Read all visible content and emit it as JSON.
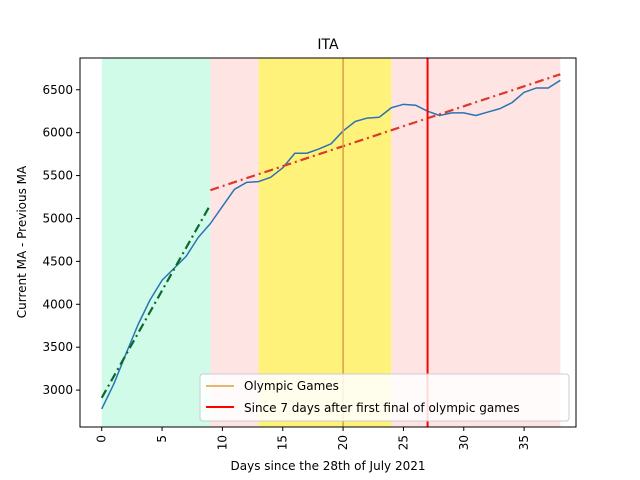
{
  "chart_data": {
    "type": "line",
    "title": "ITA",
    "xlabel": "Days since the 28th of July 2021",
    "ylabel": "Current MA - Previous MA",
    "xlim": [
      -1.8,
      39.3
    ],
    "ylim": [
      2570,
      6870
    ],
    "xticks": [
      0,
      5,
      10,
      15,
      20,
      25,
      30,
      35
    ],
    "yticks": [
      3000,
      3500,
      4000,
      4500,
      5000,
      5500,
      6000,
      6500
    ],
    "grid": false,
    "legend_position": "lower-right",
    "spans": [
      {
        "x0": 0,
        "x1": 9,
        "color": "#cffbe8"
      },
      {
        "x0": 9,
        "x1": 13,
        "color": "#ffe4e4"
      },
      {
        "x0": 13,
        "x1": 24,
        "color": "#fff27a"
      },
      {
        "x0": 24,
        "x1": 38,
        "color": "#ffe4e4"
      }
    ],
    "series": [
      {
        "color": "#2a74b4",
        "style": "solid",
        "x": [
          0,
          1,
          2,
          3,
          4,
          5,
          6,
          7,
          8,
          9,
          10,
          11,
          12,
          13,
          14,
          15,
          16,
          17,
          18,
          19,
          20,
          21,
          22,
          23,
          24,
          25,
          26,
          27,
          28,
          29,
          30,
          31,
          32,
          33,
          34,
          35,
          36,
          37,
          38
        ],
        "y": [
          2780,
          3070,
          3420,
          3760,
          4050,
          4280,
          4420,
          4560,
          4780,
          4940,
          5140,
          5340,
          5420,
          5430,
          5480,
          5590,
          5760,
          5760,
          5810,
          5870,
          6020,
          6130,
          6170,
          6180,
          6290,
          6330,
          6320,
          6250,
          6200,
          6230,
          6230,
          6200,
          6240,
          6280,
          6350,
          6470,
          6520,
          6520,
          6610
        ]
      },
      {
        "color": "#0a6a2a",
        "style": "dashdot",
        "x": [
          0,
          9
        ],
        "y": [
          2910,
          5160
        ]
      },
      {
        "color": "#d93a2b",
        "style": "dashdot",
        "x": [
          9,
          38
        ],
        "y": [
          5330,
          6680
        ]
      }
    ],
    "vlines": [
      {
        "x": 20,
        "color": "#d9a044",
        "name": "Olympic Games"
      },
      {
        "x": 27,
        "color": "#ff0000",
        "name": "Since 7 days after first final of olympic games"
      }
    ]
  }
}
